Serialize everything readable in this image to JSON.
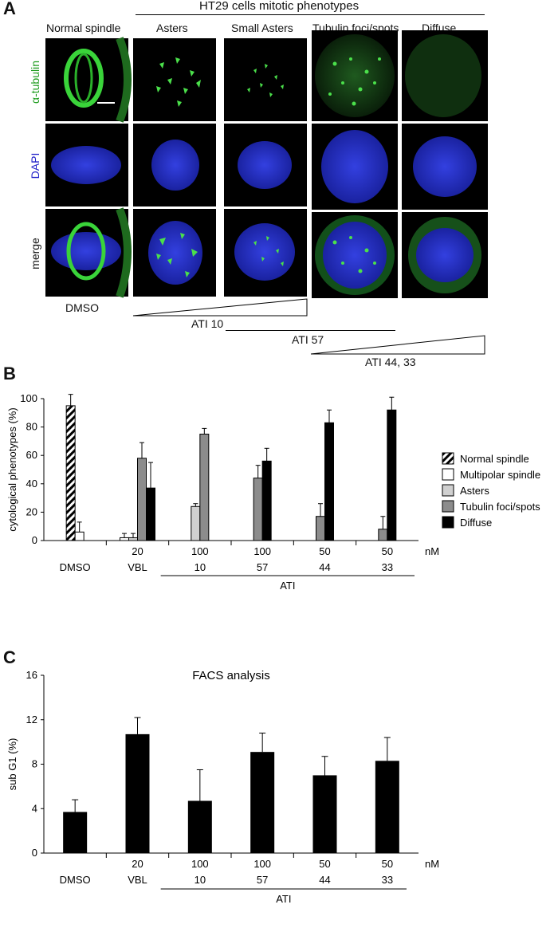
{
  "panel_a": {
    "letter": "A",
    "title": "HT29 cells mitotic phenotypes",
    "columns": [
      "Normal spindle",
      "Asters",
      "Small Asters",
      "Tubulin foci/spots",
      "Diffuse"
    ],
    "rows": [
      "α-tubulin",
      "DAPI",
      "merge"
    ],
    "row_colors": [
      "#1a9a1a",
      "#2020c8",
      "#111111"
    ],
    "below_labels": {
      "dmso": "DMSO",
      "ati10": "ATI 10",
      "ati57": "ATI 57",
      "ati4433": "ATI 44, 33"
    }
  },
  "chart_data": [
    {
      "panel": "B",
      "type": "bar",
      "ylabel": "cytological phenotypes (%)",
      "ylim": [
        0,
        100
      ],
      "yticks": [
        0,
        20,
        40,
        60,
        80,
        100
      ],
      "unit_label": "nM",
      "groups": [
        {
          "top": "",
          "bottom": "DMSO"
        },
        {
          "top": "20",
          "bottom": "VBL"
        },
        {
          "top": "100",
          "bottom": "10"
        },
        {
          "top": "100",
          "bottom": "57"
        },
        {
          "top": "50",
          "bottom": "44"
        },
        {
          "top": "50",
          "bottom": "33"
        }
      ],
      "bracket_label": "ATI",
      "series": [
        {
          "name": "Normal spindle",
          "style": "hatched",
          "values": [
            95,
            0,
            0,
            0,
            0,
            0
          ],
          "errors": [
            8,
            0,
            0,
            0,
            0,
            0
          ]
        },
        {
          "name": "Multipolar spindle",
          "style": "white",
          "values": [
            6,
            2,
            0,
            0,
            0,
            0
          ],
          "errors": [
            7,
            3,
            0,
            0,
            0,
            0
          ]
        },
        {
          "name": "Asters",
          "style": "light",
          "values": [
            0,
            2,
            24,
            0,
            0,
            0
          ],
          "errors": [
            0,
            3,
            2,
            0,
            0,
            0
          ]
        },
        {
          "name": "Tubulin foci/spots",
          "style": "mid",
          "values": [
            0,
            58,
            75,
            44,
            17,
            8
          ],
          "errors": [
            0,
            11,
            4,
            9,
            9,
            9
          ]
        },
        {
          "name": "Diffuse",
          "style": "black",
          "values": [
            0,
            37,
            0,
            56,
            83,
            92
          ],
          "errors": [
            0,
            18,
            0,
            9,
            9,
            9
          ]
        }
      ],
      "colors": {
        "black": "#000000",
        "mid": "#8c8c8c",
        "light": "#d0d0d0",
        "white": "#ffffff"
      }
    },
    {
      "panel": "C",
      "type": "bar",
      "title": "FACS analysis",
      "ylabel": "sub G1 (%)",
      "ylim": [
        0,
        16
      ],
      "yticks": [
        0,
        4,
        8,
        12,
        16
      ],
      "unit_label": "nM",
      "groups": [
        {
          "top": "",
          "bottom": "DMSO"
        },
        {
          "top": "20",
          "bottom": "VBL"
        },
        {
          "top": "100",
          "bottom": "10"
        },
        {
          "top": "100",
          "bottom": "57"
        },
        {
          "top": "50",
          "bottom": "44"
        },
        {
          "top": "50",
          "bottom": "33"
        }
      ],
      "bracket_label": "ATI",
      "values": [
        3.7,
        10.7,
        4.7,
        9.1,
        7.0,
        8.3
      ],
      "errors": [
        1.1,
        1.5,
        2.8,
        1.7,
        1.7,
        2.1
      ],
      "color": "#000000"
    }
  ],
  "panel_letters": {
    "b": "B",
    "c": "C"
  }
}
